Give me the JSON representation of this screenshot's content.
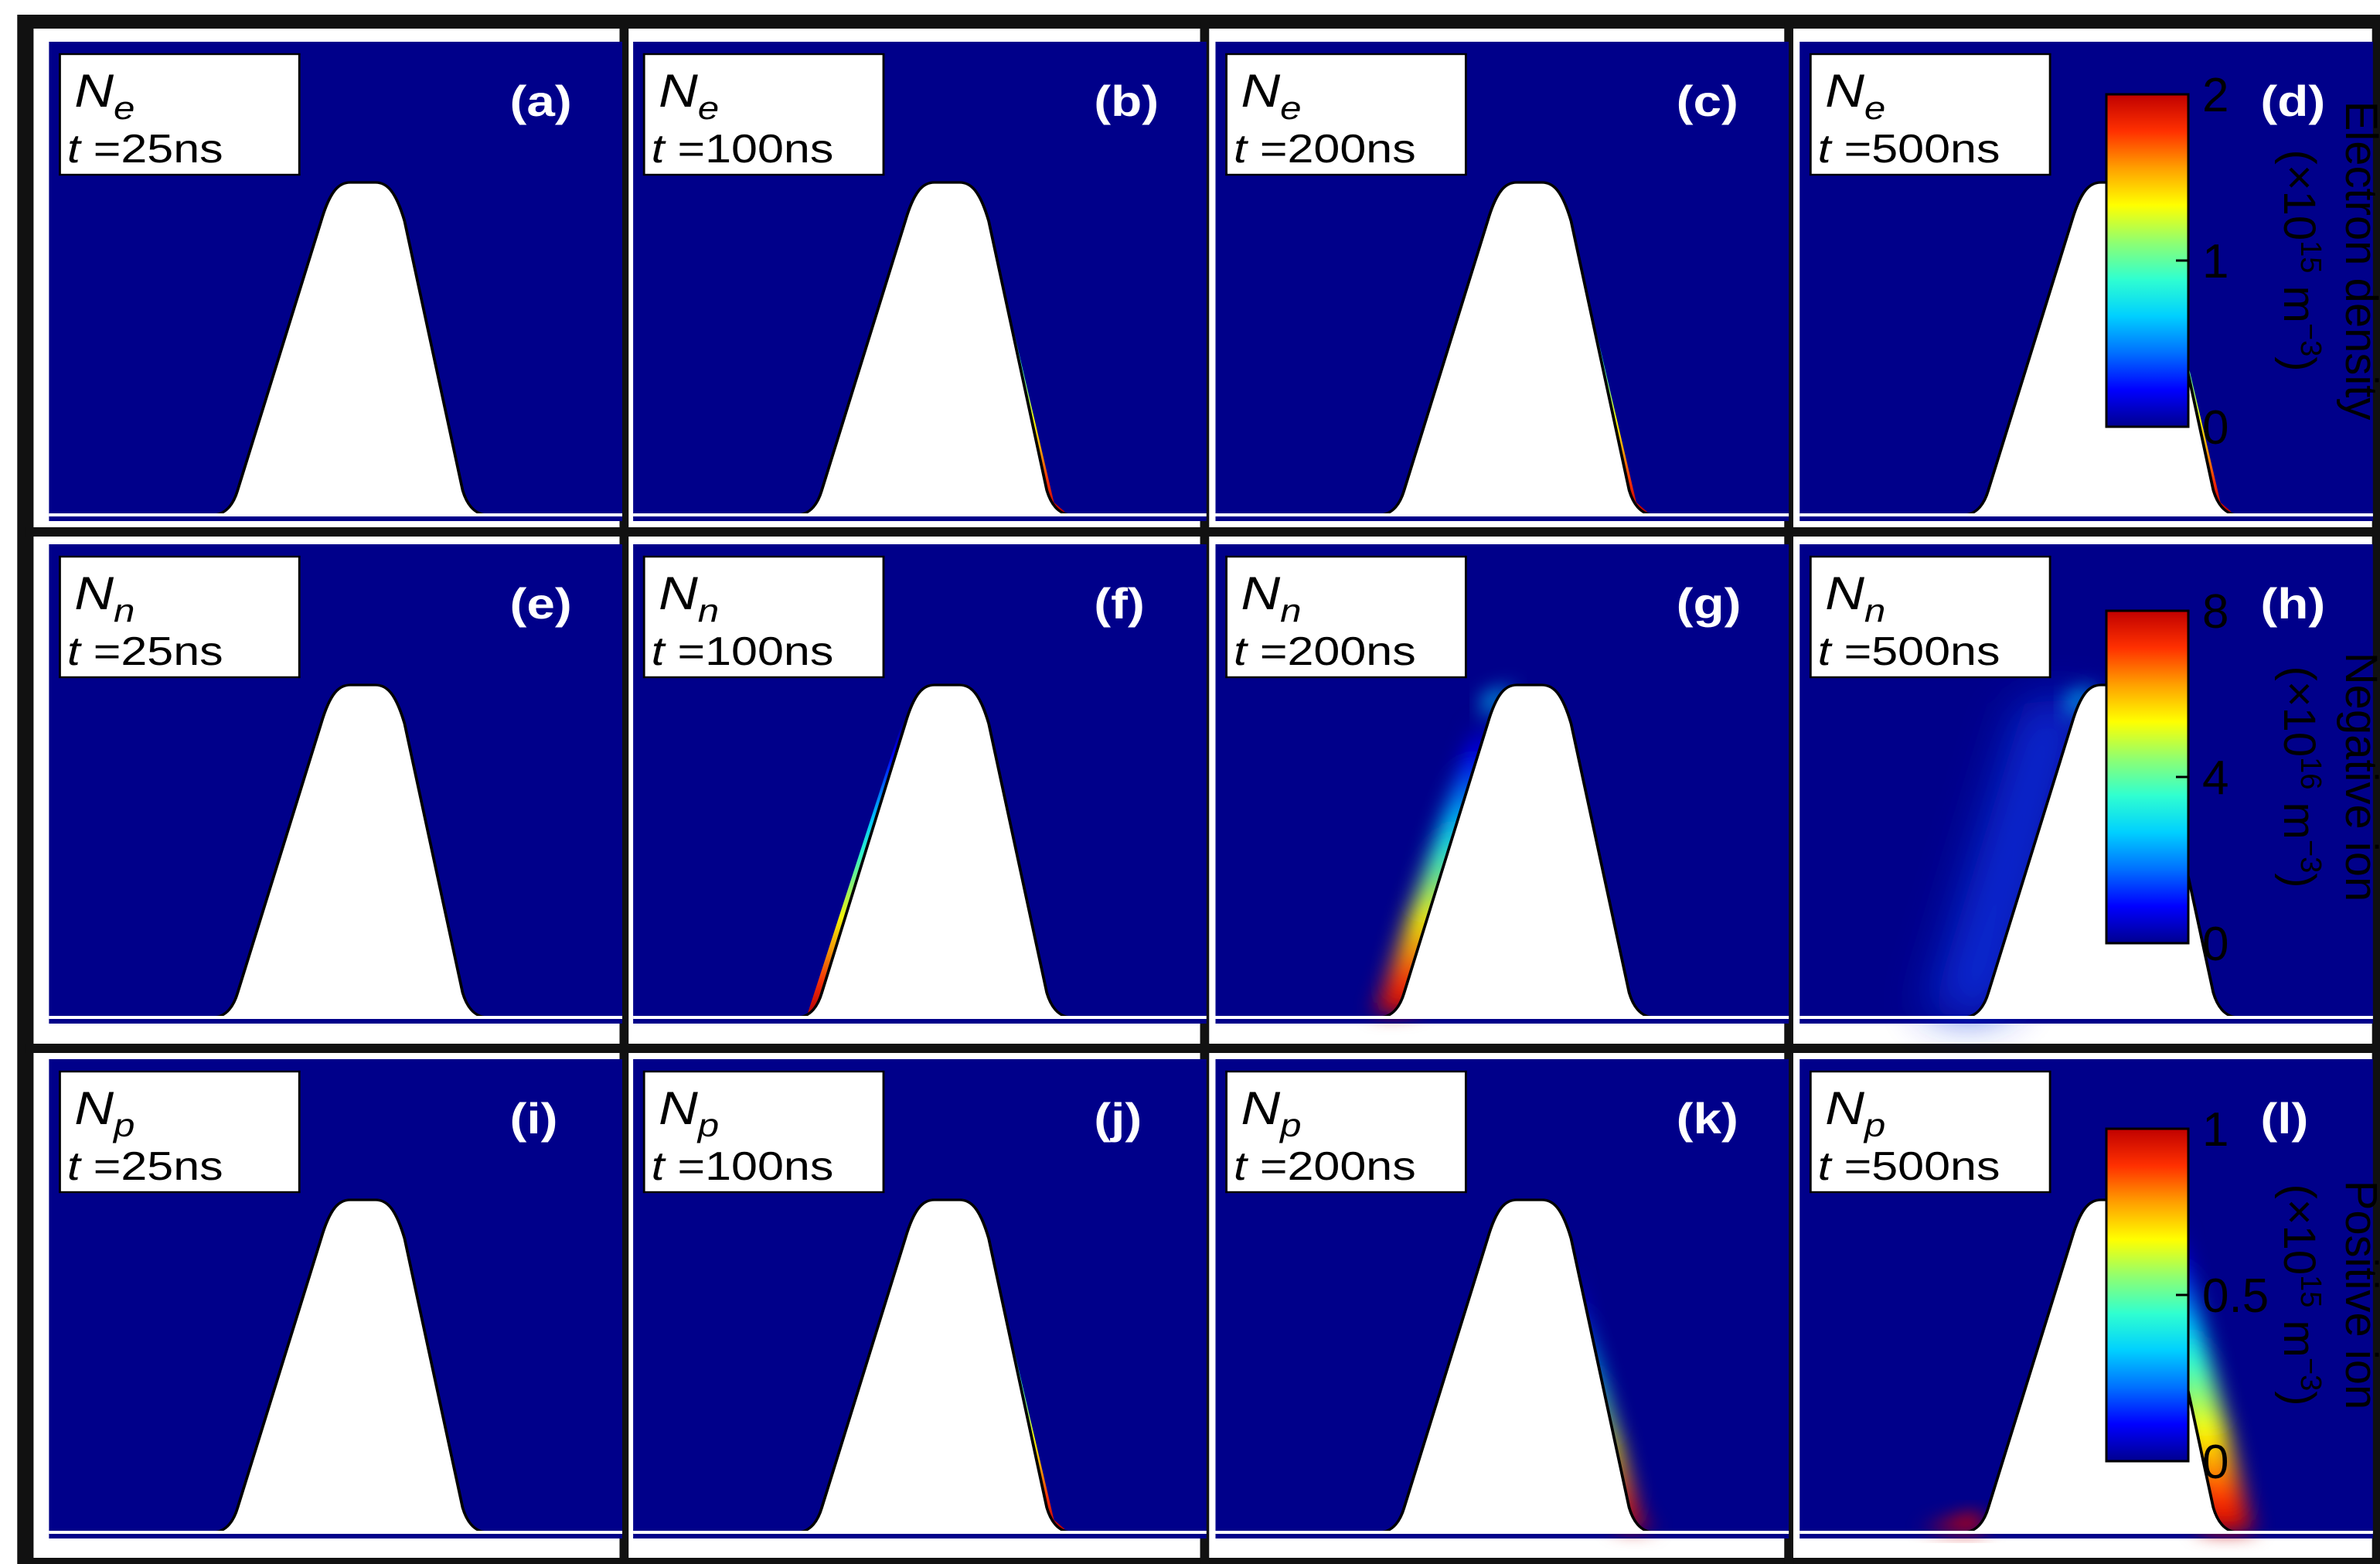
{
  "colors": {
    "background": "#00008a",
    "frame": "#111111",
    "tip": "#ffffff",
    "colormap": [
      "#00008f",
      "#0000ff",
      "#0070ff",
      "#00d0ff",
      "#30ffd0",
      "#90ff70",
      "#ffff00",
      "#ffa000",
      "#ff3000",
      "#c00000"
    ]
  },
  "rows": [
    {
      "variable": "N",
      "subscript": "e",
      "colorbar": {
        "title": "Electron density",
        "unit_prefix": "(×10",
        "exponent": "15",
        "unit_suffix": " m",
        "unit_exp": "−3",
        "unit_close": ")",
        "ticks": [
          {
            "label": "2",
            "frac": 1.0
          },
          {
            "label": "1",
            "frac": 0.5
          },
          {
            "label": "0",
            "frac": 0.0
          }
        ]
      },
      "panels": [
        {
          "label": "(a)",
          "time_prefix": "t",
          "time_value": " =25ns",
          "plume": "ne25"
        },
        {
          "label": "(b)",
          "time_prefix": "t",
          "time_value": " =100ns",
          "plume": "ne100"
        },
        {
          "label": "(c)",
          "time_prefix": "t",
          "time_value": " =200ns",
          "plume": "ne200"
        },
        {
          "label": "(d)",
          "time_prefix": "t",
          "time_value": " =500ns",
          "plume": "ne500"
        }
      ]
    },
    {
      "variable": "N",
      "subscript": "n",
      "colorbar": {
        "title": "Negative ion",
        "unit_prefix": "(×10",
        "exponent": "16",
        "unit_suffix": " m",
        "unit_exp": "−3",
        "unit_close": ")",
        "ticks": [
          {
            "label": "8",
            "frac": 1.0
          },
          {
            "label": "4",
            "frac": 0.5
          },
          {
            "label": "0",
            "frac": 0.0
          }
        ]
      },
      "panels": [
        {
          "label": "(e)",
          "time_prefix": "t",
          "time_value": " =25ns",
          "plume": "nn25"
        },
        {
          "label": "(f)",
          "time_prefix": "t",
          "time_value": " =100ns",
          "plume": "nn100"
        },
        {
          "label": "(g)",
          "time_prefix": "t",
          "time_value": " =200ns",
          "plume": "nn200"
        },
        {
          "label": "(h)",
          "time_prefix": "t",
          "time_value": " =500ns",
          "plume": "nn500"
        }
      ]
    },
    {
      "variable": "N",
      "subscript": "p",
      "colorbar": {
        "title": "Positive ion",
        "unit_prefix": "(×10",
        "exponent": "15",
        "unit_suffix": " m",
        "unit_exp": "−3",
        "unit_close": ")",
        "ticks": [
          {
            "label": "1",
            "frac": 1.0
          },
          {
            "label": "0.5",
            "frac": 0.5
          },
          {
            "label": "0",
            "frac": 0.0
          }
        ]
      },
      "panels": [
        {
          "label": "(i)",
          "time_prefix": "t",
          "time_value": " =25ns",
          "plume": "np25"
        },
        {
          "label": "(j)",
          "time_prefix": "t",
          "time_value": " =100ns",
          "plume": "np100"
        },
        {
          "label": "(k)",
          "time_prefix": "t",
          "time_value": " =200ns",
          "plume": "np200"
        },
        {
          "label": "(l)",
          "time_prefix": "t",
          "time_value": " =500ns",
          "plume": "np500"
        }
      ]
    }
  ]
}
